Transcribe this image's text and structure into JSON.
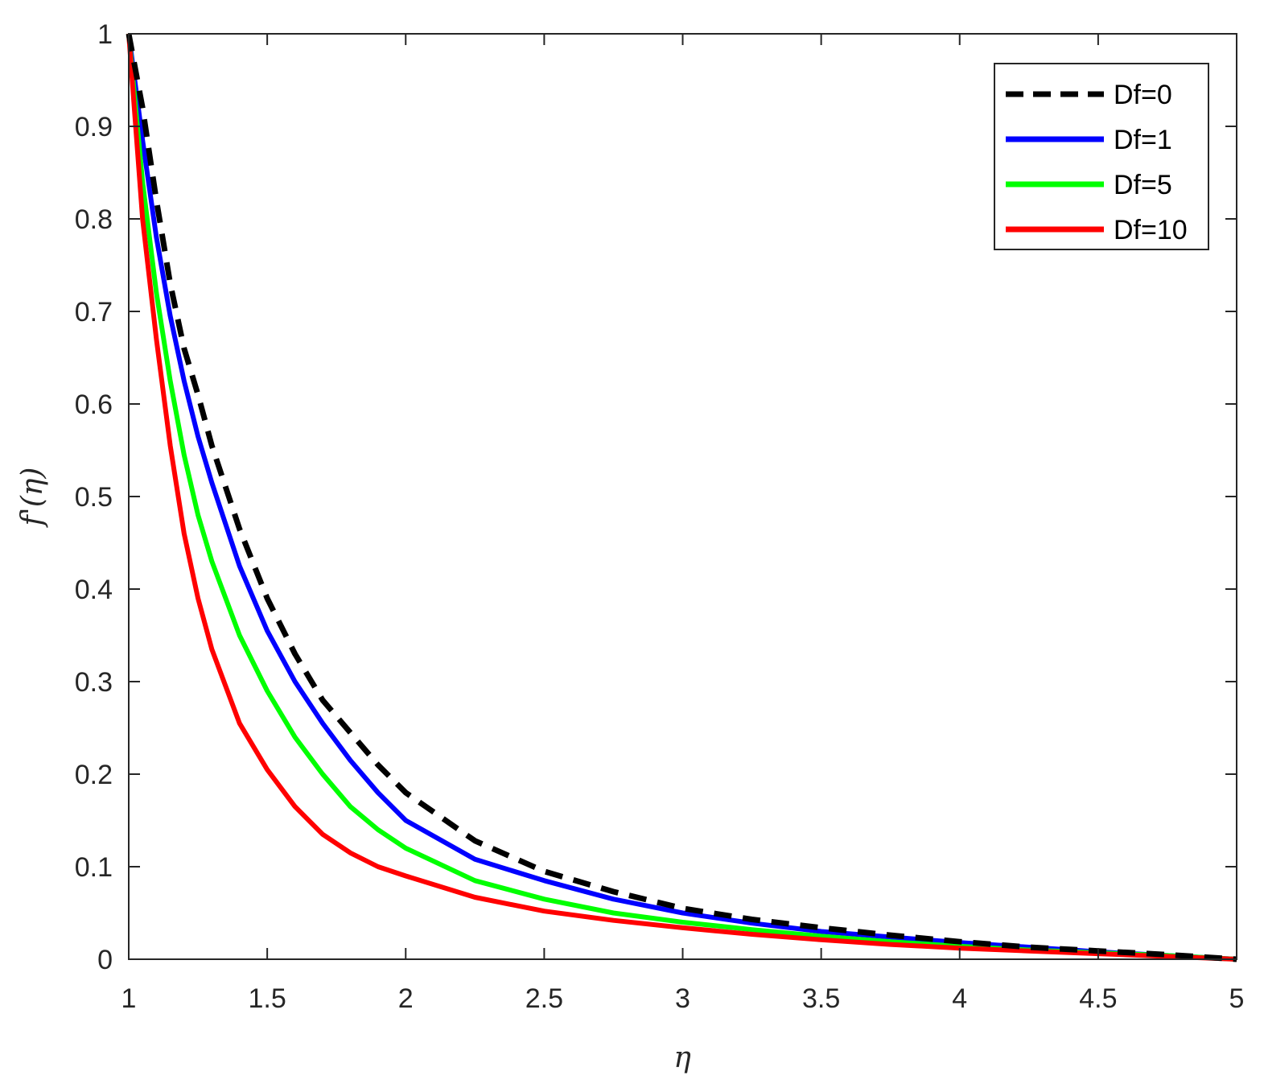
{
  "chart_data": {
    "type": "line",
    "title": "",
    "xlabel": "η",
    "ylabel": "f'(η)",
    "xlim": [
      1,
      5
    ],
    "ylim": [
      0,
      1
    ],
    "grid": false,
    "legend_position": "top-right",
    "x_ticks": [
      "1",
      "1.5",
      "2",
      "2.5",
      "3",
      "3.5",
      "4",
      "4.5",
      "5"
    ],
    "y_ticks": [
      "0",
      "0.1",
      "0.2",
      "0.3",
      "0.4",
      "0.5",
      "0.6",
      "0.7",
      "0.8",
      "0.9",
      "1"
    ],
    "x": [
      1.0,
      1.05,
      1.1,
      1.15,
      1.2,
      1.25,
      1.3,
      1.4,
      1.5,
      1.6,
      1.7,
      1.8,
      1.9,
      2.0,
      2.25,
      2.5,
      2.75,
      3.0,
      3.25,
      3.5,
      3.75,
      4.0,
      4.25,
      4.5,
      4.75,
      5.0
    ],
    "series": [
      {
        "name": "Df=0",
        "color": "#000000",
        "style": "dashed",
        "values": [
          1.0,
          0.92,
          0.82,
          0.73,
          0.66,
          0.61,
          0.555,
          0.465,
          0.39,
          0.33,
          0.28,
          0.245,
          0.21,
          0.18,
          0.128,
          0.095,
          0.073,
          0.055,
          0.043,
          0.034,
          0.026,
          0.019,
          0.013,
          0.009,
          0.005,
          0.0
        ]
      },
      {
        "name": "Df=1",
        "color": "#0000ff",
        "style": "solid",
        "values": [
          1.0,
          0.885,
          0.78,
          0.695,
          0.625,
          0.565,
          0.515,
          0.425,
          0.355,
          0.3,
          0.255,
          0.215,
          0.18,
          0.15,
          0.108,
          0.085,
          0.065,
          0.05,
          0.039,
          0.03,
          0.024,
          0.018,
          0.013,
          0.008,
          0.004,
          0.0
        ]
      },
      {
        "name": "Df=5",
        "color": "#00ff00",
        "style": "solid",
        "values": [
          1.0,
          0.84,
          0.72,
          0.625,
          0.545,
          0.48,
          0.43,
          0.35,
          0.29,
          0.24,
          0.2,
          0.165,
          0.14,
          0.12,
          0.085,
          0.065,
          0.05,
          0.04,
          0.032,
          0.025,
          0.019,
          0.014,
          0.01,
          0.007,
          0.004,
          0.0
        ]
      },
      {
        "name": "Df=10",
        "color": "#ff0000",
        "style": "solid",
        "values": [
          1.0,
          0.8,
          0.67,
          0.555,
          0.46,
          0.39,
          0.335,
          0.255,
          0.205,
          0.165,
          0.135,
          0.115,
          0.1,
          0.09,
          0.067,
          0.052,
          0.042,
          0.034,
          0.027,
          0.021,
          0.016,
          0.012,
          0.009,
          0.006,
          0.003,
          0.0
        ]
      }
    ]
  }
}
